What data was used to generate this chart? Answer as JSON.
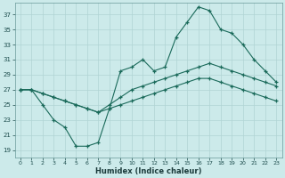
{
  "background_color": "#cceaea",
  "grid_color": "#b0d4d4",
  "line_color": "#1a6a5a",
  "xlabel": "Humidex (Indice chaleur)",
  "xlim": [
    -0.5,
    23.5
  ],
  "ylim": [
    18,
    38.5
  ],
  "yticks": [
    19,
    21,
    23,
    25,
    27,
    29,
    31,
    33,
    35,
    37
  ],
  "xticks": [
    0,
    1,
    2,
    3,
    4,
    5,
    6,
    7,
    8,
    9,
    10,
    11,
    12,
    13,
    14,
    15,
    16,
    17,
    18,
    19,
    20,
    21,
    22,
    23
  ],
  "line1_x": [
    0,
    1,
    2,
    3,
    4,
    5,
    6,
    7,
    8,
    9,
    10,
    11,
    12,
    13,
    14,
    15,
    16,
    17,
    18,
    19,
    20,
    21,
    22,
    23
  ],
  "line1_y": [
    27,
    27,
    25,
    23,
    22,
    19.5,
    19.5,
    20,
    24.5,
    29.5,
    30,
    31,
    29.5,
    30,
    34,
    36,
    38,
    37.5,
    35,
    34.5,
    33,
    31,
    29.5,
    28
  ],
  "line2_x": [
    0,
    1,
    2,
    3,
    4,
    5,
    6,
    7,
    8,
    9,
    10,
    11,
    12,
    13,
    14,
    15,
    16,
    17,
    18,
    19,
    20,
    21,
    22,
    23
  ],
  "line2_y": [
    27,
    27,
    26.5,
    26,
    25.5,
    25,
    24.5,
    24,
    25,
    26,
    27,
    27.5,
    28,
    28.5,
    29,
    29.5,
    30,
    30.5,
    30,
    29.5,
    29,
    28.5,
    28,
    27.5
  ],
  "line3_x": [
    0,
    1,
    2,
    3,
    4,
    5,
    6,
    7,
    8,
    9,
    10,
    11,
    12,
    13,
    14,
    15,
    16,
    17,
    18,
    19,
    20,
    21,
    22,
    23
  ],
  "line3_y": [
    27,
    27,
    26.5,
    26,
    25.5,
    25,
    24.5,
    24,
    24.5,
    25,
    25.5,
    26,
    26.5,
    27,
    27.5,
    28,
    28.5,
    28.5,
    28,
    27.5,
    27,
    26.5,
    26,
    25.5
  ]
}
